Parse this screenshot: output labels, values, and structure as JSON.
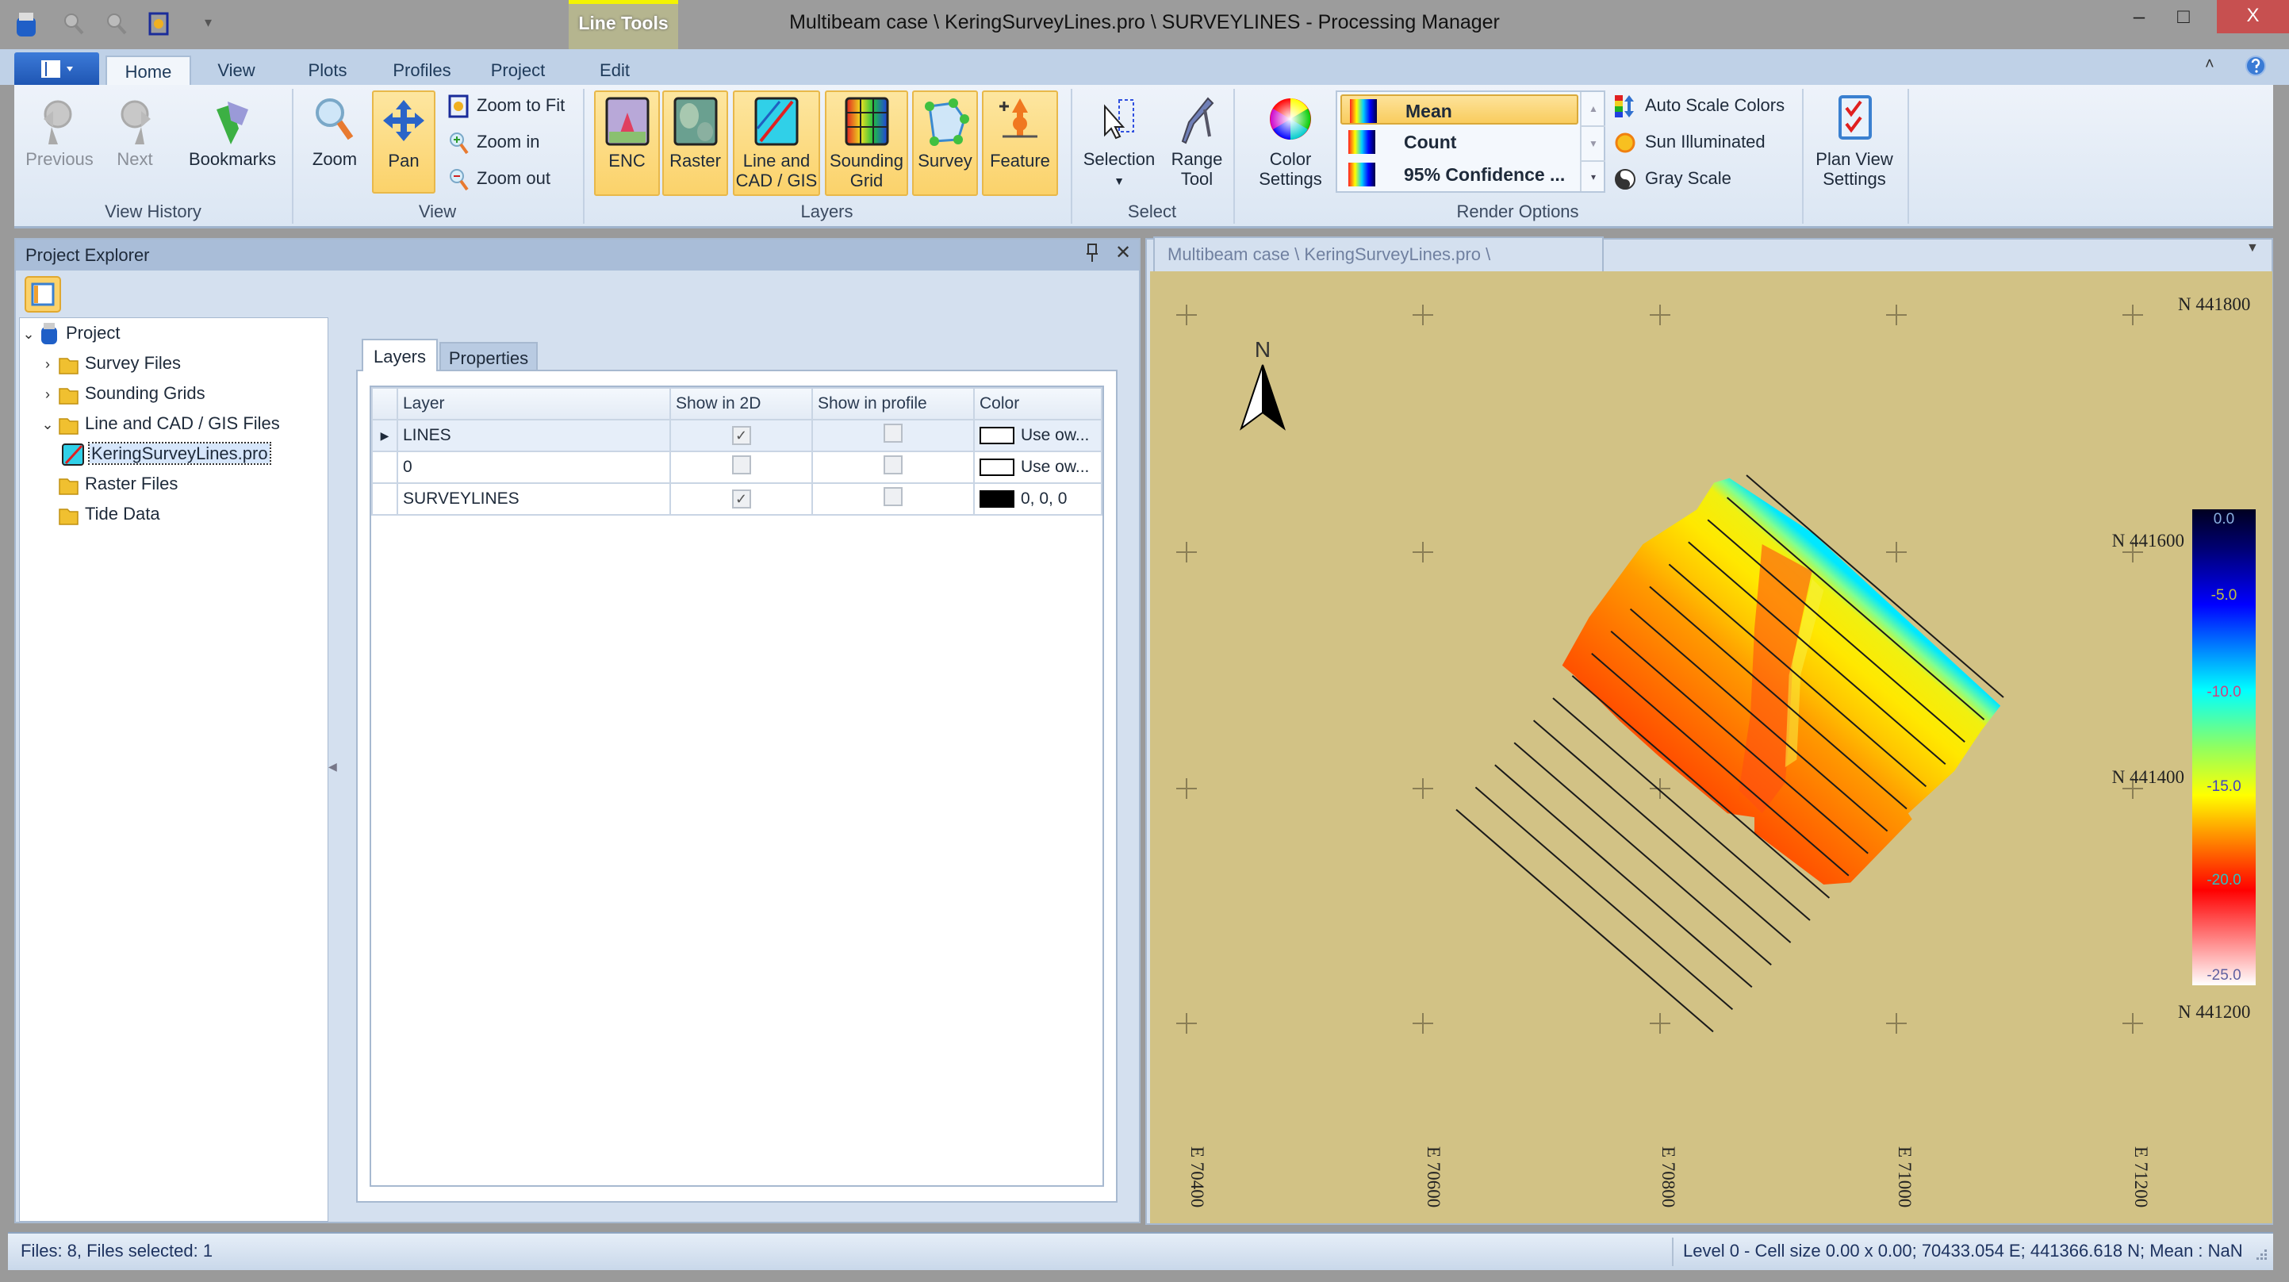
{
  "window": {
    "title": "Multibeam case \\ KeringSurveyLines.pro \\ SURVEYLINES - Processing Manager",
    "context_tab": "Line Tools",
    "minimize": "–",
    "maximize": "□",
    "close": "X"
  },
  "ribbon": {
    "tabs": [
      "Home",
      "View",
      "Plots",
      "Profiles",
      "Project",
      "Edit"
    ],
    "active_tab": "Home",
    "groups": {
      "view_history": "View History",
      "view": "View",
      "layers": "Layers",
      "select": "Select",
      "render_options": "Render Options"
    },
    "buttons": {
      "previous": "Previous",
      "next": "Next",
      "bookmarks": "Bookmarks",
      "zoom": "Zoom",
      "pan": "Pan",
      "zoom_to_fit": "Zoom to Fit",
      "zoom_in": "Zoom in",
      "zoom_out": "Zoom out",
      "enc": "ENC",
      "raster": "Raster",
      "line_cad_1": "Line and",
      "line_cad_2": "CAD / GIS",
      "sounding_1": "Sounding",
      "sounding_2": "Grid",
      "survey": "Survey",
      "feature": "Feature",
      "selection": "Selection",
      "range_1": "Range",
      "range_2": "Tool",
      "color_1": "Color",
      "color_2": "Settings",
      "auto_scale": "Auto Scale Colors",
      "sun": "Sun Illuminated",
      "gray": "Gray Scale",
      "plan_1": "Plan View",
      "plan_2": "Settings"
    },
    "render_gallery": [
      {
        "label": "Mean",
        "selected": true
      },
      {
        "label": "Count",
        "selected": false
      },
      {
        "label": "95% Confidence ...",
        "selected": false
      }
    ]
  },
  "explorer": {
    "title": "Project Explorer",
    "tree": [
      {
        "label": "Project",
        "expanded": true
      },
      {
        "label": "Survey Files",
        "expanded": false
      },
      {
        "label": "Sounding Grids",
        "expanded": false
      },
      {
        "label": "Line and CAD / GIS Files",
        "expanded": true
      },
      {
        "label": "KeringSurveyLines.pro",
        "selected": true
      },
      {
        "label": "Raster Files"
      },
      {
        "label": "Tide Data"
      }
    ],
    "tabs": [
      "Layers",
      "Properties"
    ],
    "columns": [
      "Layer",
      "Show in 2D",
      "Show in profile",
      "Color"
    ],
    "rows": [
      {
        "layer": "LINES",
        "show_2d": true,
        "show_profile": false,
        "color": "Use ow...",
        "swatch": "#ffffff"
      },
      {
        "layer": "0",
        "show_2d": false,
        "show_profile": false,
        "color": "Use ow...",
        "swatch": "#ffffff"
      },
      {
        "layer": "SURVEYLINES",
        "show_2d": true,
        "show_profile": false,
        "color": "0, 0, 0",
        "swatch": "#000000"
      }
    ]
  },
  "map": {
    "tab": "Multibeam case \\ KeringSurveyLines.pro \\ SURVEYLINES",
    "north_label": "N",
    "northings": [
      "N 441800",
      "N 441600",
      "N 441400",
      "N 441200"
    ],
    "eastings": [
      "E 70400",
      "E 70600",
      "E 70800",
      "E 71000",
      "E 71200"
    ],
    "background": "#d2c285",
    "legend": {
      "labels": [
        "0.0",
        "-5.0",
        "-10.0",
        "-15.0",
        "-20.0",
        "-25.0"
      ],
      "range": [
        0,
        -25
      ]
    }
  },
  "status": {
    "left": "Files: 8, Files selected: 1",
    "right": "Level 0 - Cell size 0.00 x 0.00; 70433.054 E; 441366.618 N; Mean : NaN"
  }
}
